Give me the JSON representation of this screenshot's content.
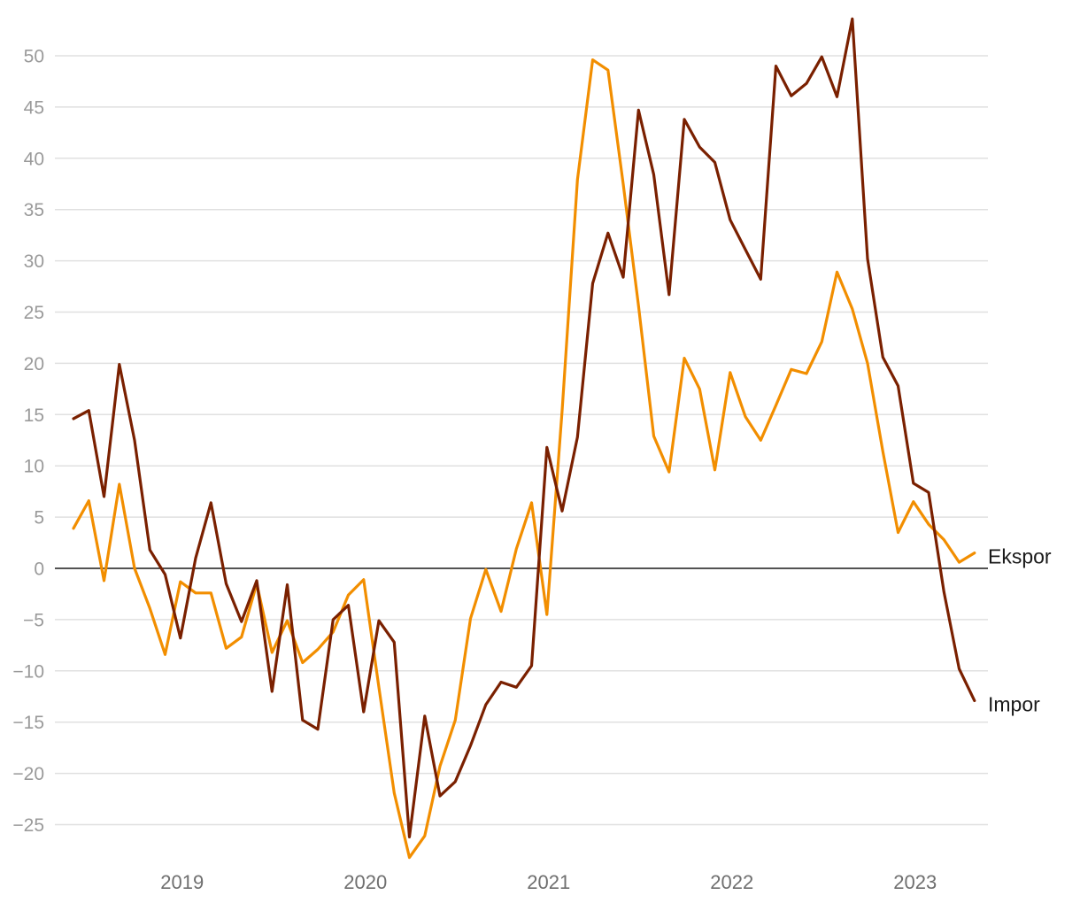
{
  "chart_data": {
    "type": "line",
    "title": "",
    "xlabel": "",
    "ylabel": "",
    "ylim": [
      -28.5,
      53.5
    ],
    "yticks": [
      -25,
      -20,
      -15,
      -10,
      -5,
      0,
      5,
      10,
      15,
      20,
      25,
      30,
      35,
      40,
      45,
      50
    ],
    "ytick_labels": [
      "−25",
      "−20",
      "−15",
      "−10",
      "−5",
      "0",
      "5",
      "10",
      "15",
      "20",
      "25",
      "30",
      "35",
      "40",
      "45",
      "50"
    ],
    "xlim": [
      "2018-06",
      "2023-06"
    ],
    "xticks": [
      "2019-01",
      "2020-01",
      "2021-01",
      "2022-01",
      "2023-01"
    ],
    "xtick_labels": [
      "2019",
      "2020",
      "2021",
      "2022",
      "2023"
    ],
    "grid": true,
    "x": [
      "2018-06",
      "2018-07",
      "2018-08",
      "2018-09",
      "2018-10",
      "2018-11",
      "2018-12",
      "2019-01",
      "2019-02",
      "2019-03",
      "2019-04",
      "2019-05",
      "2019-06",
      "2019-07",
      "2019-08",
      "2019-09",
      "2019-10",
      "2019-11",
      "2019-12",
      "2020-01",
      "2020-02",
      "2020-03",
      "2020-04",
      "2020-05",
      "2020-06",
      "2020-07",
      "2020-08",
      "2020-09",
      "2020-10",
      "2020-11",
      "2020-12",
      "2021-01",
      "2021-02",
      "2021-03",
      "2021-04",
      "2021-05",
      "2021-06",
      "2021-07",
      "2021-08",
      "2021-09",
      "2021-10",
      "2021-11",
      "2021-12",
      "2022-01",
      "2022-02",
      "2022-03",
      "2022-04",
      "2022-05",
      "2022-06",
      "2022-07",
      "2022-08",
      "2022-09",
      "2022-10",
      "2022-11",
      "2022-12",
      "2023-01",
      "2023-02",
      "2023-03",
      "2023-04",
      "2023-05",
      "2023-06"
    ],
    "series": [
      {
        "name": "Ekspor",
        "color": "#f28e00",
        "values": [
          3.9,
          6.6,
          -1.2,
          8.2,
          0.0,
          -3.9,
          -8.4,
          -1.3,
          -2.4,
          -2.4,
          -7.8,
          -6.7,
          -1.5,
          -8.2,
          -5.1,
          -9.2,
          -7.9,
          -6.2,
          -2.6,
          -1.1,
          -11.6,
          -21.9,
          -28.2,
          -26.1,
          -19.3,
          -14.8,
          -4.9,
          -0.1,
          -4.2,
          1.9,
          6.4,
          -4.5,
          15.4,
          37.9,
          49.6,
          48.6,
          37.5,
          25.6,
          12.9,
          9.4,
          20.5,
          17.5,
          9.6,
          19.1,
          14.8,
          12.5,
          15.9,
          19.4,
          19.0,
          22.1,
          28.9,
          25.3,
          20.0,
          11.4,
          3.5,
          6.5,
          4.3,
          2.8,
          0.6,
          1.5,
          null
        ]
      },
      {
        "name": "Impor",
        "color": "#7a2000",
        "values": [
          14.6,
          15.4,
          7.0,
          19.9,
          12.5,
          1.8,
          -0.6,
          -6.8,
          1.0,
          6.4,
          -1.5,
          -5.2,
          -1.2,
          -12.0,
          -1.6,
          -14.8,
          -15.7,
          -5.0,
          -3.6,
          -14.0,
          -5.1,
          -7.2,
          -26.2,
          -14.4,
          -22.2,
          -20.8,
          -17.3,
          -13.3,
          -11.1,
          -11.6,
          -9.5,
          11.8,
          5.6,
          12.8,
          27.8,
          32.7,
          28.4,
          44.7,
          38.4,
          26.7,
          43.8,
          41.1,
          39.6,
          34.0,
          31.1,
          28.2,
          49.0,
          46.1,
          47.3,
          49.9,
          46.0,
          53.6,
          30.2,
          20.6,
          17.8,
          8.3,
          7.4,
          -2.3,
          -9.8,
          -12.9,
          null
        ]
      }
    ],
    "series_labels": [
      {
        "name": "Ekspor"
      },
      {
        "name": "Impor"
      }
    ]
  }
}
